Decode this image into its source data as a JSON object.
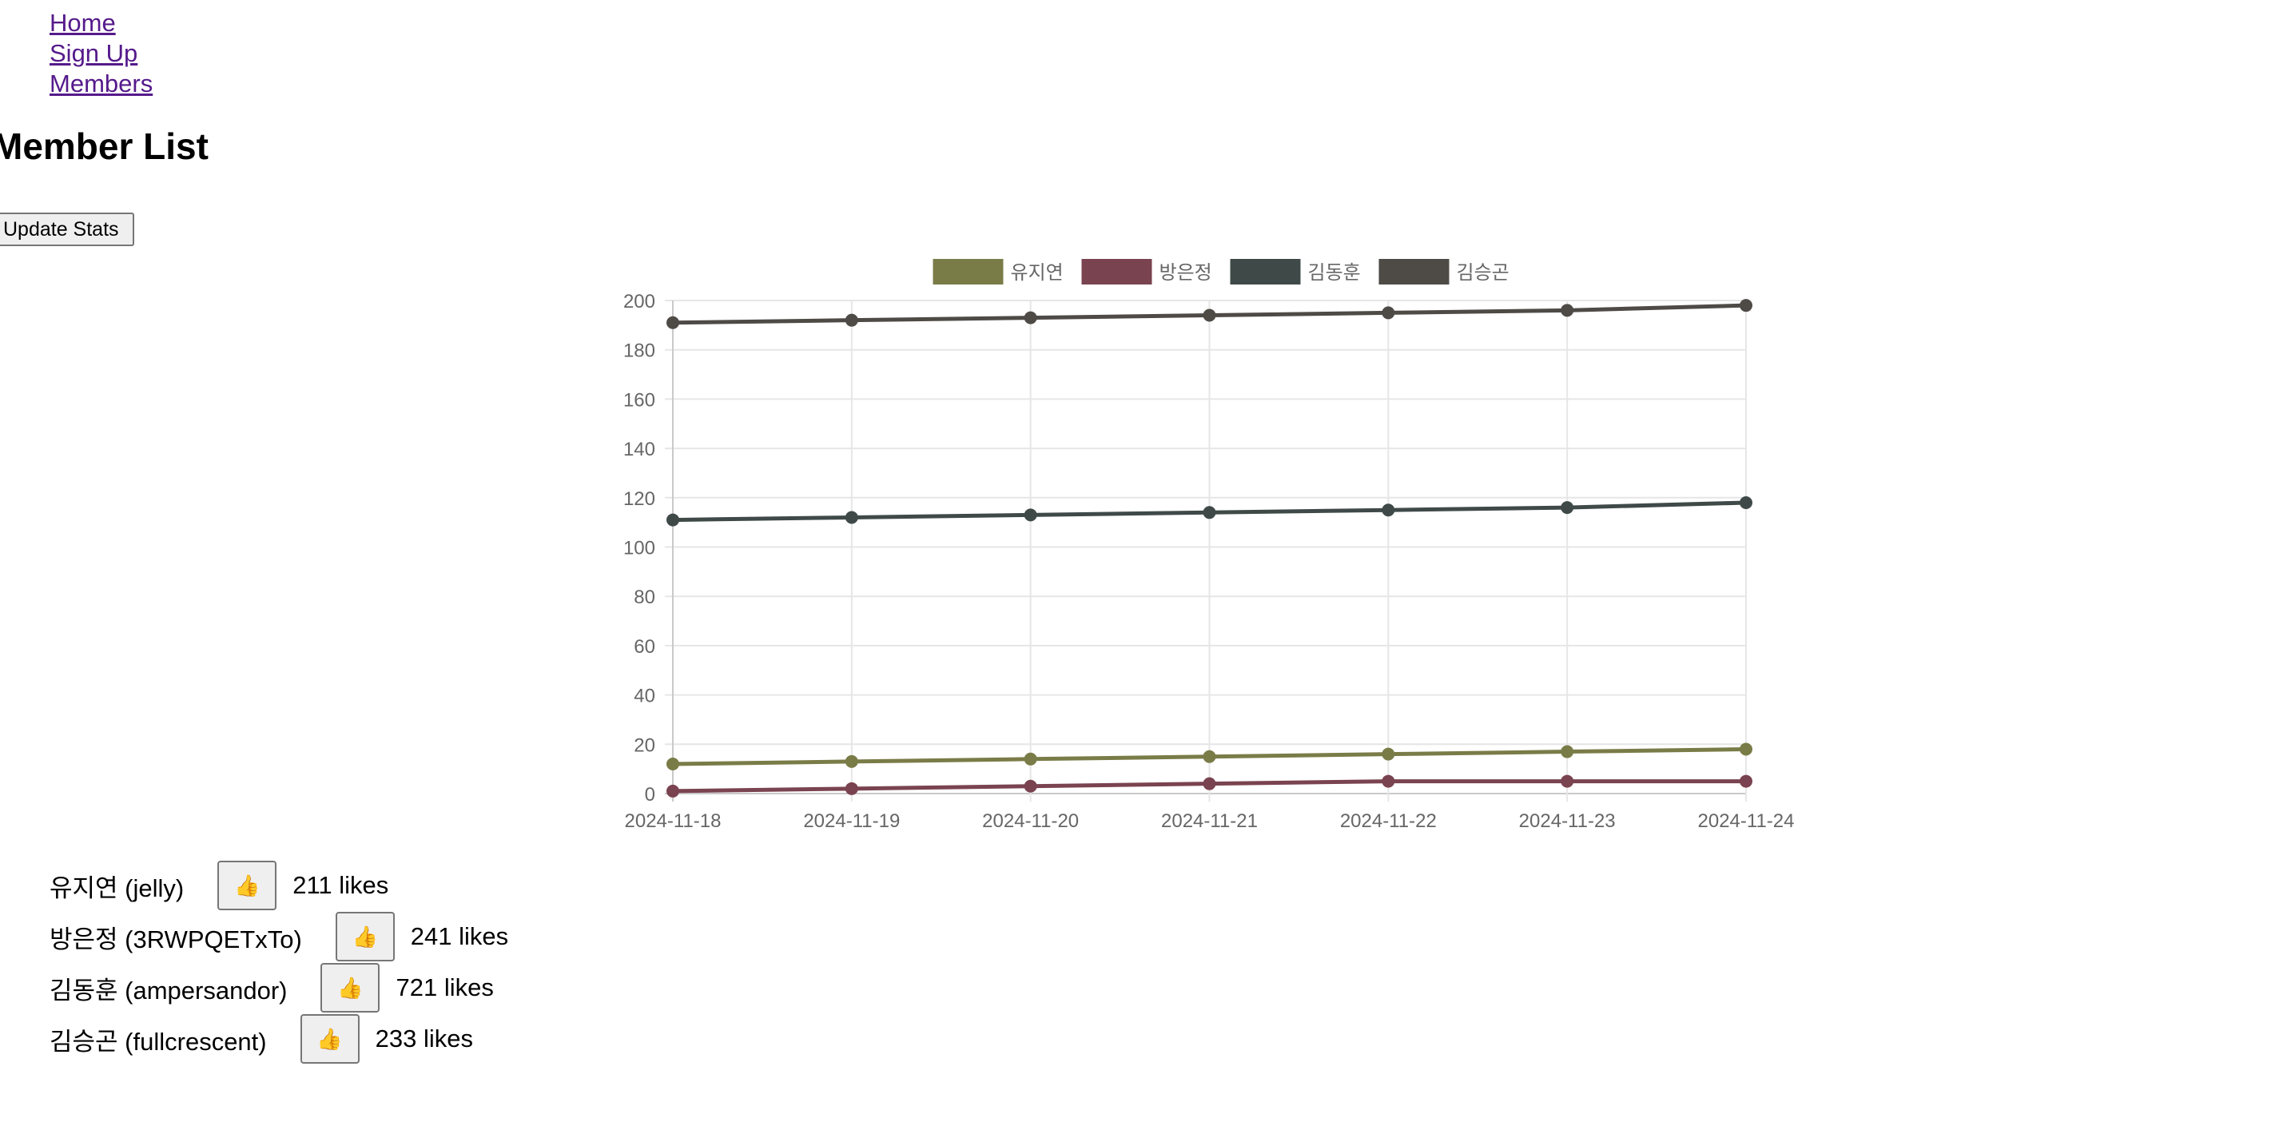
{
  "nav": {
    "home": "Home",
    "signup": "Sign Up",
    "members": "Members"
  },
  "page_title": "Member List",
  "update_button": "Update Stats",
  "chart_data": {
    "type": "line",
    "x": [
      "2024-11-18",
      "2024-11-19",
      "2024-11-20",
      "2024-11-21",
      "2024-11-22",
      "2024-11-23",
      "2024-11-24"
    ],
    "ylim": [
      0,
      200
    ],
    "yticks": [
      0,
      20,
      40,
      60,
      80,
      100,
      120,
      140,
      160,
      180,
      200
    ],
    "grid": true,
    "legend": "top",
    "series": [
      {
        "name": "유지연",
        "color": "#7a7c48",
        "values": [
          12,
          13,
          14,
          15,
          16,
          17,
          18
        ]
      },
      {
        "name": "방은정",
        "color": "#7a4350",
        "values": [
          1,
          2,
          3,
          4,
          5,
          5,
          5
        ]
      },
      {
        "name": "김동훈",
        "color": "#3f4a48",
        "values": [
          111,
          112,
          113,
          114,
          115,
          116,
          118
        ]
      },
      {
        "name": "김승곤",
        "color": "#4e4a46",
        "values": [
          191,
          192,
          193,
          194,
          195,
          196,
          198
        ]
      }
    ]
  },
  "members": [
    {
      "label": "유지연 (jelly)",
      "likes": "211 likes",
      "like_icon": "👍"
    },
    {
      "label": "방은정 (3RWPQETxTo)",
      "likes": "241 likes",
      "like_icon": "👍"
    },
    {
      "label": "김동훈 (ampersandor)",
      "likes": "721 likes",
      "like_icon": "👍"
    },
    {
      "label": "김승곤 (fullcrescent)",
      "likes": "233 likes",
      "like_icon": "👍"
    }
  ]
}
